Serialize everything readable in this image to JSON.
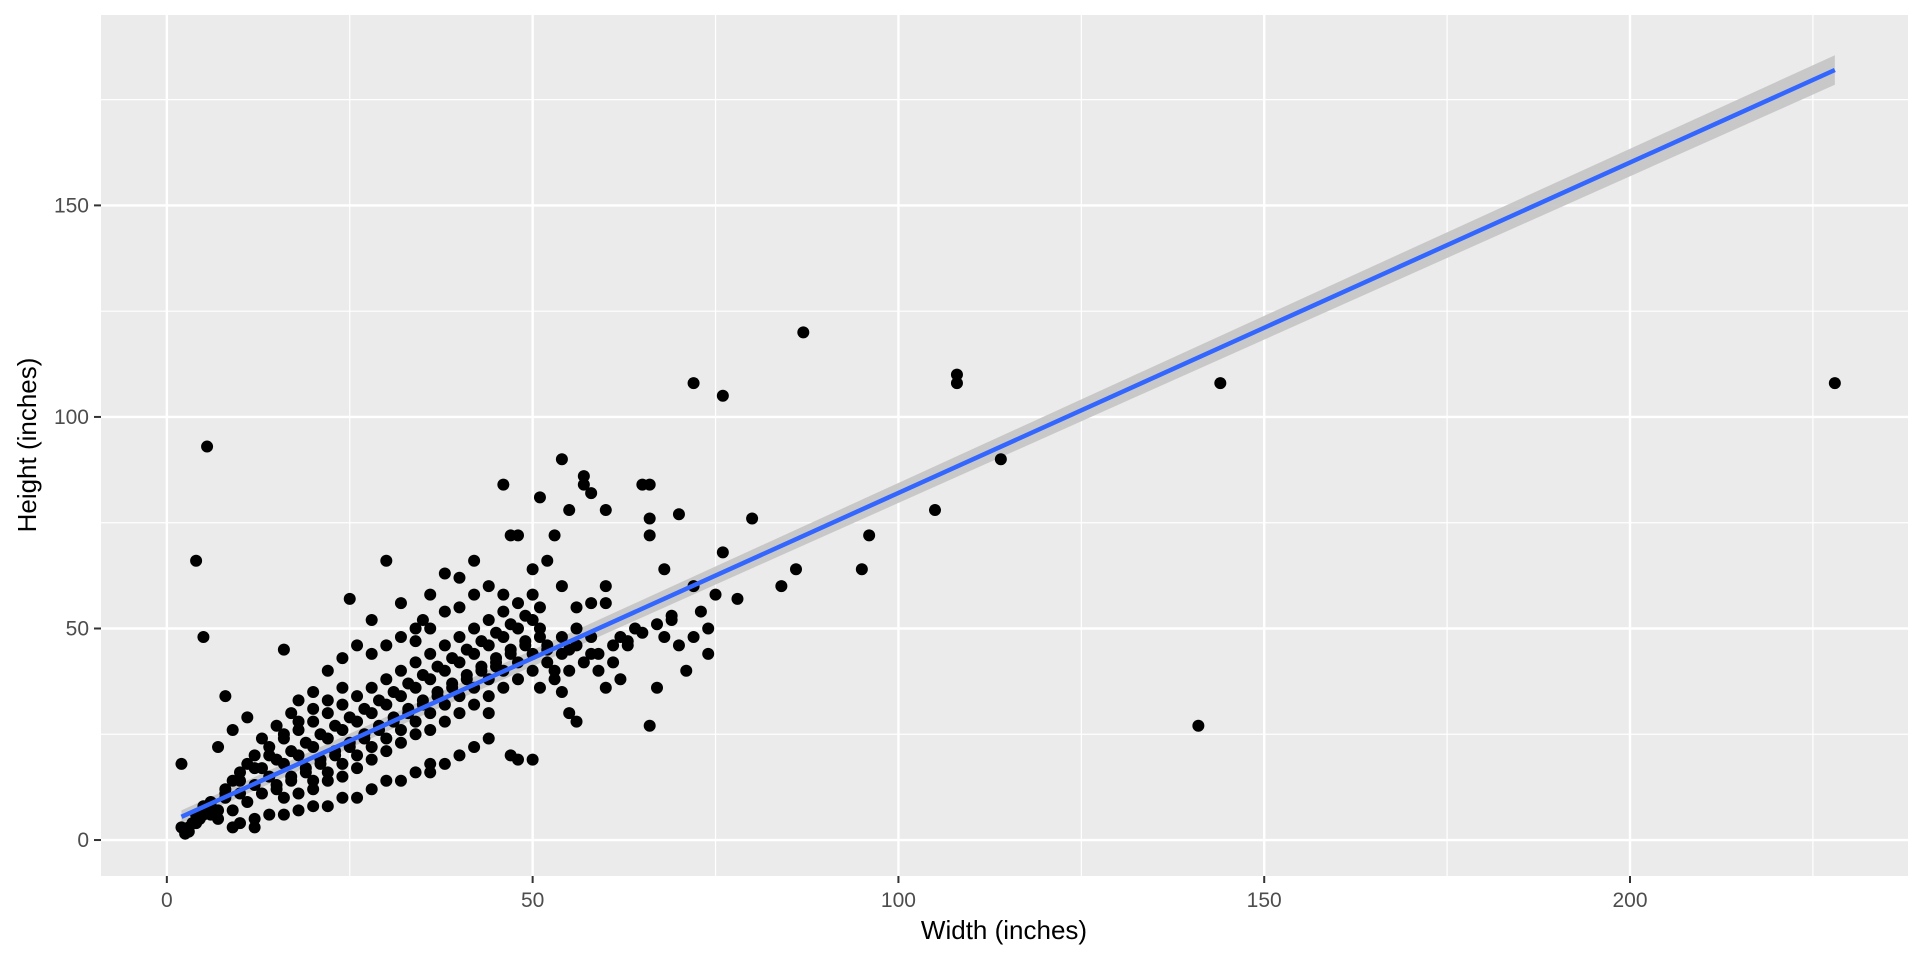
{
  "chart_data": {
    "type": "scatter",
    "xlabel": "Width (inches)",
    "ylabel": "Height (inches)",
    "xlim": [
      -9,
      238
    ],
    "ylim": [
      -8.5,
      195
    ],
    "x_ticks": [
      0,
      50,
      100,
      150,
      200
    ],
    "y_ticks": [
      0,
      50,
      100,
      150
    ],
    "x_tick_labels": [
      "0",
      "50",
      "100",
      "150",
      "200"
    ],
    "y_tick_labels": [
      "0",
      "50",
      "100",
      "150"
    ],
    "grid": true,
    "legend": "none",
    "series": [
      {
        "type": "scatter",
        "color": "#000000",
        "points": [
          [
            2,
            18
          ],
          [
            4,
            66
          ],
          [
            5.5,
            93
          ],
          [
            5,
            48
          ],
          [
            8,
            34
          ],
          [
            16,
            45
          ],
          [
            25,
            57
          ],
          [
            30,
            66
          ],
          [
            46,
            84
          ],
          [
            51,
            81
          ],
          [
            54,
            90
          ],
          [
            57,
            86
          ],
          [
            72,
            108
          ],
          [
            76,
            105
          ],
          [
            87,
            120
          ],
          [
            108,
            110
          ],
          [
            108,
            108
          ],
          [
            144,
            108
          ],
          [
            228,
            108
          ],
          [
            114,
            90
          ],
          [
            105,
            78
          ],
          [
            141,
            27
          ],
          [
            66,
            27
          ],
          [
            96,
            72
          ],
          [
            95,
            64
          ],
          [
            86,
            64
          ],
          [
            84,
            60
          ],
          [
            80,
            76
          ],
          [
            78,
            57
          ],
          [
            76,
            68
          ],
          [
            72,
            60
          ],
          [
            70,
            77
          ],
          [
            71,
            40
          ],
          [
            66,
            84
          ],
          [
            65,
            84
          ],
          [
            66,
            76
          ],
          [
            66,
            72
          ],
          [
            68,
            64
          ],
          [
            67,
            36
          ],
          [
            60,
            78
          ],
          [
            58,
            82
          ],
          [
            57,
            84
          ],
          [
            55,
            78
          ],
          [
            53,
            72
          ],
          [
            54,
            60
          ],
          [
            52,
            66
          ],
          [
            51,
            50
          ],
          [
            50,
            64
          ],
          [
            48,
            72
          ],
          [
            47,
            72
          ],
          [
            46,
            58
          ],
          [
            45,
            41
          ],
          [
            47,
            20
          ],
          [
            48,
            19
          ],
          [
            50,
            19
          ],
          [
            44,
            30
          ],
          [
            42,
            66
          ],
          [
            40,
            62
          ],
          [
            38,
            63
          ],
          [
            36,
            58
          ],
          [
            35,
            52
          ],
          [
            34,
            50
          ],
          [
            32,
            56
          ],
          [
            28,
            52
          ],
          [
            26,
            46
          ],
          [
            24,
            43
          ],
          [
            22,
            40
          ],
          [
            20,
            35
          ],
          [
            18,
            33
          ],
          [
            17,
            30
          ],
          [
            15,
            27
          ],
          [
            13,
            24
          ],
          [
            11,
            29
          ],
          [
            9,
            26
          ],
          [
            7,
            22
          ],
          [
            5,
            8
          ],
          [
            4,
            6
          ],
          [
            3,
            3
          ],
          [
            2.5,
            1.5
          ],
          [
            2,
            3
          ],
          [
            3.5,
            4
          ],
          [
            4.5,
            5
          ],
          [
            6,
            6
          ],
          [
            6,
            9
          ],
          [
            7,
            7
          ],
          [
            8,
            10
          ],
          [
            8,
            12
          ],
          [
            9,
            14
          ],
          [
            10,
            11
          ],
          [
            10,
            16
          ],
          [
            11,
            18
          ],
          [
            12,
            13
          ],
          [
            12,
            20
          ],
          [
            13,
            17
          ],
          [
            14,
            22
          ],
          [
            14,
            15
          ],
          [
            15,
            19
          ],
          [
            15,
            12
          ],
          [
            16,
            24
          ],
          [
            16,
            18
          ],
          [
            17,
            21
          ],
          [
            17,
            14
          ],
          [
            18,
            26
          ],
          [
            18,
            20
          ],
          [
            19,
            23
          ],
          [
            19,
            16
          ],
          [
            20,
            28
          ],
          [
            20,
            22
          ],
          [
            21,
            25
          ],
          [
            21,
            18
          ],
          [
            22,
            30
          ],
          [
            22,
            24
          ],
          [
            23,
            27
          ],
          [
            23,
            20
          ],
          [
            24,
            32
          ],
          [
            24,
            26
          ],
          [
            25,
            29
          ],
          [
            25,
            22
          ],
          [
            26,
            34
          ],
          [
            26,
            28
          ],
          [
            27,
            31
          ],
          [
            27,
            24
          ],
          [
            28,
            36
          ],
          [
            28,
            30
          ],
          [
            29,
            33
          ],
          [
            29,
            26
          ],
          [
            30,
            38
          ],
          [
            30,
            32
          ],
          [
            31,
            35
          ],
          [
            31,
            28
          ],
          [
            32,
            40
          ],
          [
            32,
            34
          ],
          [
            33,
            37
          ],
          [
            33,
            30
          ],
          [
            34,
            42
          ],
          [
            34,
            36
          ],
          [
            35,
            39
          ],
          [
            35,
            32
          ],
          [
            36,
            44
          ],
          [
            36,
            38
          ],
          [
            37,
            41
          ],
          [
            37,
            34
          ],
          [
            38,
            46
          ],
          [
            38,
            40
          ],
          [
            39,
            43
          ],
          [
            39,
            36
          ],
          [
            40,
            48
          ],
          [
            40,
            42
          ],
          [
            41,
            45
          ],
          [
            41,
            38
          ],
          [
            42,
            50
          ],
          [
            42,
            44
          ],
          [
            43,
            47
          ],
          [
            43,
            40
          ],
          [
            44,
            52
          ],
          [
            44,
            46
          ],
          [
            45,
            49
          ],
          [
            45,
            42
          ],
          [
            46,
            54
          ],
          [
            46,
            48
          ],
          [
            47,
            51
          ],
          [
            47,
            44
          ],
          [
            48,
            56
          ],
          [
            48,
            50
          ],
          [
            49,
            53
          ],
          [
            49,
            46
          ],
          [
            50,
            58
          ],
          [
            50,
            52
          ],
          [
            51,
            55
          ],
          [
            51,
            48
          ],
          [
            52,
            45
          ],
          [
            53,
            40
          ],
          [
            54,
            35
          ],
          [
            55,
            30
          ],
          [
            56,
            28
          ],
          [
            58,
            44
          ],
          [
            59,
            40
          ],
          [
            60,
            36
          ],
          [
            61,
            42
          ],
          [
            62,
            48
          ],
          [
            63,
            46
          ],
          [
            64,
            50
          ],
          [
            62,
            38
          ],
          [
            60,
            56
          ],
          [
            60,
            60
          ],
          [
            58,
            56
          ],
          [
            56,
            55
          ],
          [
            55,
            45
          ],
          [
            68,
            48
          ],
          [
            69,
            52
          ],
          [
            70,
            46
          ],
          [
            72,
            48
          ],
          [
            73,
            54
          ],
          [
            74,
            50
          ],
          [
            75,
            58
          ],
          [
            74,
            44
          ],
          [
            30,
            14
          ],
          [
            32,
            14
          ],
          [
            34,
            16
          ],
          [
            36,
            16
          ],
          [
            38,
            18
          ],
          [
            40,
            20
          ],
          [
            42,
            22
          ],
          [
            44,
            24
          ],
          [
            36,
            18
          ],
          [
            28,
            12
          ],
          [
            26,
            10
          ],
          [
            24,
            10
          ],
          [
            22,
            8
          ],
          [
            20,
            8
          ],
          [
            18,
            7
          ],
          [
            16,
            6
          ],
          [
            14,
            6
          ],
          [
            12,
            5
          ],
          [
            10,
            4
          ],
          [
            9,
            3
          ],
          [
            12,
            3
          ],
          [
            20,
            12
          ],
          [
            22,
            14
          ],
          [
            24,
            15
          ],
          [
            26,
            17
          ],
          [
            28,
            19
          ],
          [
            30,
            21
          ],
          [
            32,
            23
          ],
          [
            34,
            25
          ],
          [
            36,
            26
          ],
          [
            38,
            28
          ],
          [
            40,
            30
          ],
          [
            42,
            32
          ],
          [
            44,
            34
          ],
          [
            46,
            36
          ],
          [
            48,
            38
          ],
          [
            50,
            40
          ],
          [
            52,
            42
          ],
          [
            54,
            44
          ],
          [
            56,
            46
          ],
          [
            58,
            48
          ],
          [
            28,
            44
          ],
          [
            30,
            46
          ],
          [
            32,
            48
          ],
          [
            34,
            47
          ],
          [
            36,
            50
          ],
          [
            38,
            54
          ],
          [
            40,
            55
          ],
          [
            42,
            58
          ],
          [
            44,
            60
          ],
          [
            24,
            36
          ],
          [
            22,
            33
          ],
          [
            20,
            31
          ],
          [
            18,
            28
          ],
          [
            16,
            25
          ],
          [
            14,
            20
          ],
          [
            12,
            17
          ],
          [
            10,
            14
          ],
          [
            8,
            11
          ],
          [
            6,
            8
          ],
          [
            5,
            6
          ],
          [
            4,
            4
          ],
          [
            3,
            2
          ],
          [
            7,
            5
          ],
          [
            9,
            7
          ],
          [
            11,
            9
          ],
          [
            13,
            11
          ],
          [
            15,
            13
          ],
          [
            17,
            15
          ],
          [
            19,
            17
          ],
          [
            21,
            19
          ],
          [
            23,
            21
          ],
          [
            25,
            23
          ],
          [
            27,
            25
          ],
          [
            29,
            27
          ],
          [
            31,
            29
          ],
          [
            33,
            31
          ],
          [
            35,
            33
          ],
          [
            37,
            35
          ],
          [
            39,
            37
          ],
          [
            41,
            39
          ],
          [
            43,
            41
          ],
          [
            45,
            43
          ],
          [
            47,
            45
          ],
          [
            49,
            47
          ],
          [
            51,
            36
          ],
          [
            53,
            38
          ],
          [
            55,
            40
          ],
          [
            57,
            42
          ],
          [
            59,
            44
          ],
          [
            61,
            46
          ],
          [
            63,
            47
          ],
          [
            65,
            49
          ],
          [
            67,
            51
          ],
          [
            69,
            53
          ],
          [
            16,
            10
          ],
          [
            18,
            11
          ],
          [
            20,
            14
          ],
          [
            22,
            16
          ],
          [
            24,
            18
          ],
          [
            26,
            20
          ],
          [
            28,
            22
          ],
          [
            30,
            24
          ],
          [
            32,
            26
          ],
          [
            34,
            28
          ],
          [
            36,
            30
          ],
          [
            38,
            32
          ],
          [
            40,
            34
          ],
          [
            42,
            36
          ],
          [
            44,
            38
          ],
          [
            46,
            40
          ],
          [
            48,
            42
          ],
          [
            50,
            44
          ],
          [
            52,
            46
          ],
          [
            54,
            48
          ],
          [
            56,
            50
          ]
        ]
      },
      {
        "type": "smooth",
        "method": "lm",
        "color": "#3366FF",
        "ribbon_color": "#C4C4C4",
        "line": [
          [
            2,
            5.5
          ],
          [
            228,
            182
          ]
        ],
        "ribbon": [
          [
            2,
            4.0,
            7.0
          ],
          [
            228,
            178.5,
            185.5
          ]
        ]
      }
    ]
  }
}
